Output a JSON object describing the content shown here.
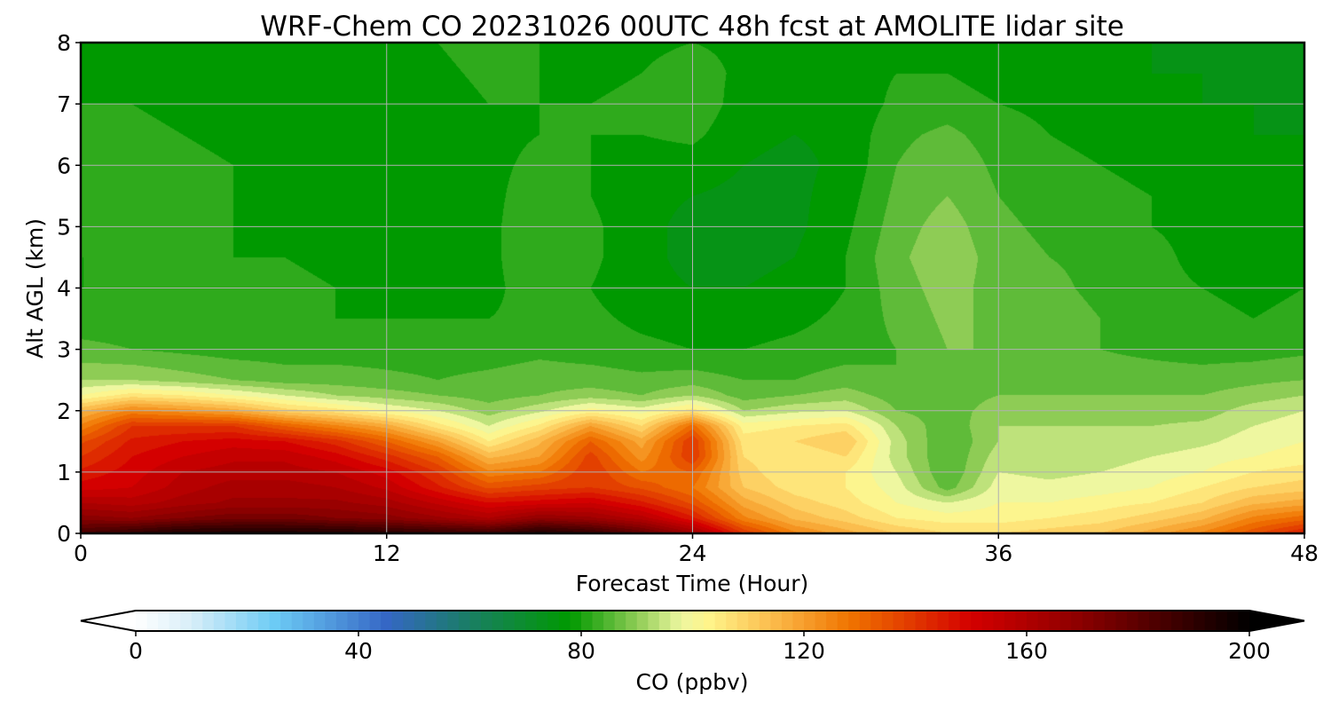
{
  "chart_data": {
    "type": "heatmap",
    "title": "WRF-Chem CO  20231026 00UTC 48h fcst at AMOLITE lidar site",
    "xlabel": "Forecast Time (Hour)",
    "ylabel": "Alt AGL (km)",
    "xlim": [
      0,
      48
    ],
    "ylim": [
      0,
      8
    ],
    "xticks": [
      0,
      12,
      24,
      36,
      48
    ],
    "yticks": [
      0,
      1,
      2,
      3,
      4,
      5,
      6,
      7,
      8
    ],
    "grid": true,
    "x": [
      0,
      2,
      4,
      6,
      8,
      10,
      12,
      14,
      16,
      18,
      20,
      22,
      24,
      26,
      28,
      30,
      32,
      34,
      36,
      38,
      40,
      42,
      44,
      46,
      48
    ],
    "y": [
      0,
      0.25,
      0.5,
      0.75,
      1,
      1.25,
      1.5,
      1.75,
      2,
      2.25,
      2.5,
      3,
      3.5,
      4,
      4.5,
      5,
      5.5,
      6,
      6.5,
      7,
      7.5,
      8
    ],
    "z": [
      [
        185,
        190,
        195,
        195,
        195,
        195,
        192,
        190,
        188,
        195,
        190,
        180,
        165,
        140,
        125,
        118,
        112,
        108,
        108,
        110,
        112,
        118,
        125,
        135,
        145
      ],
      [
        170,
        168,
        172,
        175,
        175,
        172,
        170,
        165,
        160,
        168,
        165,
        158,
        145,
        125,
        115,
        110,
        104,
        102,
        102,
        104,
        106,
        110,
        115,
        125,
        130
      ],
      [
        160,
        158,
        162,
        165,
        165,
        165,
        162,
        155,
        148,
        150,
        152,
        145,
        135,
        118,
        110,
        106,
        100,
        96,
        100,
        100,
        102,
        104,
        108,
        115,
        118
      ],
      [
        150,
        152,
        158,
        162,
        162,
        160,
        155,
        145,
        135,
        138,
        140,
        135,
        128,
        112,
        106,
        104,
        98,
        86,
        98,
        97,
        98,
        100,
        104,
        108,
        110
      ],
      [
        145,
        150,
        156,
        158,
        158,
        156,
        150,
        140,
        125,
        128,
        140,
        128,
        132,
        110,
        104,
        104,
        96,
        84,
        96,
        95,
        96,
        98,
        100,
        104,
        106
      ],
      [
        140,
        148,
        152,
        155,
        155,
        150,
        142,
        132,
        115,
        120,
        138,
        122,
        140,
        108,
        104,
        108,
        94,
        84,
        94,
        93,
        94,
        96,
        98,
        100,
        102
      ],
      [
        135,
        145,
        148,
        150,
        148,
        142,
        132,
        120,
        104,
        115,
        132,
        118,
        140,
        106,
        108,
        112,
        94,
        84,
        92,
        92,
        92,
        93,
        95,
        98,
        100
      ],
      [
        125,
        140,
        140,
        140,
        132,
        125,
        118,
        106,
        96,
        105,
        120,
        108,
        130,
        102,
        104,
        106,
        92,
        85,
        92,
        92,
        92,
        92,
        93,
        96,
        98
      ],
      [
        115,
        125,
        122,
        118,
        110,
        106,
        100,
        96,
        90,
        95,
        102,
        98,
        106,
        92,
        95,
        96,
        88,
        86,
        90,
        90,
        90,
        90,
        90,
        94,
        96
      ],
      [
        100,
        106,
        104,
        100,
        96,
        92,
        90,
        88,
        86,
        88,
        90,
        88,
        92,
        86,
        88,
        90,
        86,
        86,
        88,
        88,
        88,
        88,
        88,
        90,
        92
      ],
      [
        92,
        92,
        90,
        88,
        86,
        86,
        85,
        84,
        85,
        86,
        86,
        85,
        86,
        84,
        84,
        86,
        84,
        86,
        87,
        87,
        86,
        86,
        86,
        87,
        88
      ],
      [
        85,
        84,
        83,
        82,
        82,
        82,
        82,
        82,
        82,
        83,
        82,
        81,
        80,
        80,
        81,
        82,
        84,
        88,
        88,
        86,
        84,
        83,
        82,
        82,
        83
      ],
      [
        82,
        82,
        81,
        80,
        80,
        80,
        80,
        80,
        80,
        81,
        81,
        79,
        78,
        78,
        79,
        81,
        85,
        89,
        87,
        86,
        84,
        82,
        81,
        80,
        81
      ],
      [
        80,
        80,
        82,
        82,
        81,
        80,
        79,
        79,
        79,
        82,
        80,
        77,
        76,
        76,
        77,
        80,
        86,
        90,
        86,
        85,
        83,
        81,
        80,
        79,
        80
      ],
      [
        80,
        80,
        80,
        80,
        80,
        79,
        79,
        78,
        79,
        83,
        81,
        77,
        75,
        75,
        76,
        80,
        87,
        91,
        86,
        84,
        83,
        81,
        79,
        78,
        79
      ],
      [
        81,
        81,
        80,
        80,
        79,
        78,
        78,
        78,
        79,
        83,
        81,
        77,
        75,
        75,
        75,
        79,
        86,
        90,
        85,
        83,
        82,
        80,
        79,
        78,
        78
      ],
      [
        82,
        82,
        81,
        80,
        79,
        78,
        78,
        78,
        79,
        82,
        80,
        77,
        76,
        75,
        75,
        78,
        85,
        88,
        84,
        82,
        81,
        80,
        78,
        77,
        77
      ],
      [
        82,
        82,
        81,
        80,
        78,
        78,
        78,
        78,
        79,
        81,
        80,
        78,
        78,
        76,
        75,
        77,
        84,
        87,
        83,
        81,
        80,
        79,
        78,
        77,
        76
      ],
      [
        81,
        81,
        80,
        79,
        78,
        78,
        78,
        78,
        79,
        80,
        80,
        80,
        81,
        77,
        76,
        77,
        83,
        85,
        82,
        80,
        79,
        78,
        77,
        76,
        76
      ],
      [
        80,
        80,
        79,
        78,
        78,
        78,
        78,
        78,
        80,
        80,
        80,
        81,
        83,
        78,
        77,
        77,
        81,
        82,
        80,
        79,
        78,
        77,
        76,
        76,
        75
      ],
      [
        79,
        79,
        79,
        78,
        78,
        78,
        78,
        79,
        81,
        80,
        79,
        80,
        82,
        79,
        78,
        78,
        80,
        80,
        78,
        77,
        77,
        76,
        76,
        75,
        75
      ],
      [
        78,
        78,
        78,
        78,
        78,
        78,
        79,
        80,
        82,
        80,
        79,
        79,
        80,
        79,
        79,
        78,
        79,
        78,
        77,
        76,
        76,
        76,
        75,
        75,
        74
      ]
    ],
    "colorbar": {
      "label": "CO  (ppbv)",
      "min": 0,
      "max": 200,
      "ticks": [
        0,
        40,
        80,
        120,
        160,
        200
      ],
      "extend": "both",
      "stops": [
        [
          0,
          "#ffffff"
        ],
        [
          10,
          "#d8eef8"
        ],
        [
          25,
          "#6ccbf5"
        ],
        [
          45,
          "#3567c5"
        ],
        [
          60,
          "#197e64"
        ],
        [
          78,
          "#009900"
        ],
        [
          90,
          "#8ecc55"
        ],
        [
          98,
          "#eef7a0"
        ],
        [
          103,
          "#fff48a"
        ],
        [
          115,
          "#fbb848"
        ],
        [
          128,
          "#f07500"
        ],
        [
          150,
          "#d40000"
        ],
        [
          170,
          "#8a0000"
        ],
        [
          200,
          "#000000"
        ]
      ]
    }
  }
}
